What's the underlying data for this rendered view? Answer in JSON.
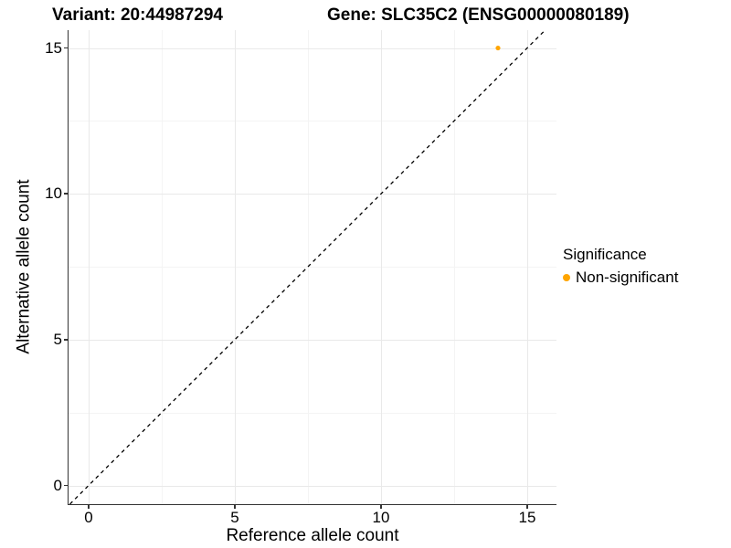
{
  "figure": {
    "titles": {
      "variant": "Variant: 20:44987294",
      "gene": "Gene: SLC35C2 (ENSG00000080189)"
    }
  },
  "axes": {
    "x": {
      "label": "Reference allele count",
      "ticks": [
        {
          "value": 0,
          "label": "0"
        },
        {
          "value": 5,
          "label": "5"
        },
        {
          "value": 10,
          "label": "10"
        },
        {
          "value": 15,
          "label": "15"
        }
      ],
      "minor": [
        2.5,
        7.5,
        12.5
      ]
    },
    "y": {
      "label": "Alternative allele count",
      "ticks": [
        {
          "value": 0,
          "label": "0"
        },
        {
          "value": 5,
          "label": "5"
        },
        {
          "value": 10,
          "label": "10"
        },
        {
          "value": 15,
          "label": "15"
        }
      ],
      "minor": [
        2.5,
        7.5,
        12.5
      ]
    }
  },
  "legend": {
    "title": "Significance",
    "items": [
      {
        "label": "Non-significant",
        "color": "#FFA500",
        "marker": "circle"
      }
    ]
  },
  "chart_data": {
    "type": "scatter",
    "title": "Variant: 20:44987294 | Gene: SLC35C2 (ENSG00000080189)",
    "xlabel": "Reference allele count",
    "ylabel": "Alternative allele count",
    "xlim": [
      -0.69,
      15.97
    ],
    "ylim": [
      -0.64,
      15.63
    ],
    "grid": {
      "major": [
        0,
        5,
        10,
        15
      ],
      "minor": [
        2.5,
        7.5,
        12.5
      ],
      "on": true
    },
    "series": [
      {
        "name": "Non-significant",
        "color": "#FFA500",
        "marker": "circle",
        "points": [
          {
            "x": 14,
            "y": 15
          }
        ]
      }
    ],
    "reference_line": {
      "type": "identity",
      "slope": 1,
      "intercept": 0,
      "style": "dashed",
      "color": "#000000"
    },
    "legend_position": "right",
    "legend_title": "Significance"
  },
  "colors": {
    "point": "#FFA500",
    "grid_major": "#e9e9e9",
    "grid_minor": "#f4f4f4",
    "axis": "#333333",
    "background": "#ffffff",
    "reference_line": "#000000"
  }
}
